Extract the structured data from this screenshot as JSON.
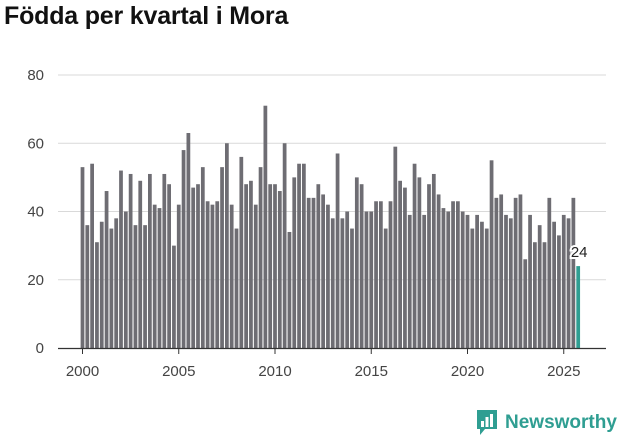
{
  "title": "Födda per kvartal i Mora",
  "brand": {
    "name": "Newsworthy",
    "accent": "#2f9e92"
  },
  "chart_data": {
    "type": "bar",
    "title": "Födda per kvartal i Mora",
    "xlabel": "",
    "ylabel": "",
    "ylim": [
      0,
      80
    ],
    "yticks": [
      0,
      20,
      40,
      60,
      80
    ],
    "xticks": [
      2000,
      2005,
      2010,
      2015,
      2020,
      2025
    ],
    "x_start": 2000.0,
    "x_step": 0.25,
    "bar_color": "#6e6d73",
    "highlight_color": "#2f9e92",
    "highlight_label": "24",
    "values": [
      53,
      36,
      54,
      31,
      37,
      46,
      35,
      38,
      52,
      40,
      51,
      36,
      49,
      36,
      51,
      42,
      41,
      51,
      48,
      30,
      42,
      58,
      63,
      47,
      48,
      53,
      43,
      42,
      43,
      53,
      60,
      42,
      35,
      56,
      48,
      49,
      42,
      53,
      71,
      48,
      48,
      46,
      60,
      34,
      50,
      54,
      54,
      44,
      44,
      48,
      45,
      42,
      38,
      57,
      38,
      40,
      35,
      50,
      48,
      40,
      40,
      43,
      43,
      35,
      43,
      59,
      49,
      47,
      39,
      54,
      50,
      39,
      48,
      51,
      45,
      41,
      40,
      43,
      43,
      40,
      39,
      35,
      39,
      37,
      35,
      55,
      44,
      45,
      39,
      38,
      44,
      45,
      26,
      39,
      31,
      36,
      31,
      44,
      37,
      33,
      39,
      38,
      44,
      24
    ]
  }
}
